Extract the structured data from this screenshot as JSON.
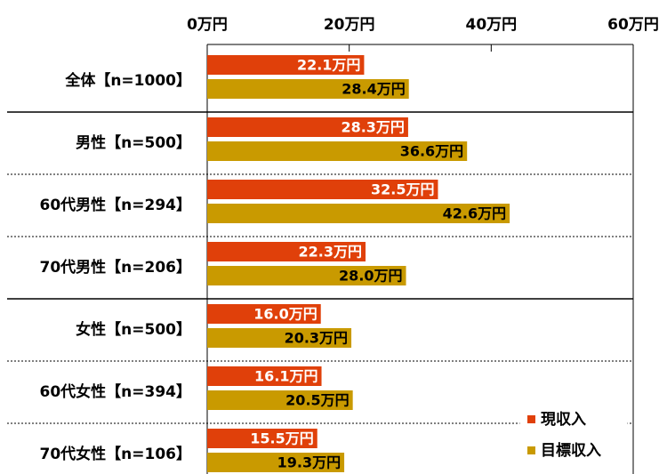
{
  "chart_data": {
    "type": "bar",
    "orientation": "horizontal",
    "categories": [
      "全体【n=1000】",
      "男性【n=500】",
      "60代男性【n=294】",
      "70代男性【n=206】",
      "女性【n=500】",
      "60代女性【n=394】",
      "70代女性【n=106】"
    ],
    "series": [
      {
        "name": "現収入",
        "color": "#e0400a",
        "values": [
          22.1,
          28.3,
          32.5,
          22.3,
          16.0,
          16.1,
          15.5
        ],
        "value_labels": [
          "22.1万円",
          "28.3万円",
          "32.5万円",
          "22.3万円",
          "16.0万円",
          "16.1万円",
          "15.5万円"
        ]
      },
      {
        "name": "目標収入",
        "color": "#c99a00",
        "values": [
          28.4,
          36.6,
          42.6,
          28.0,
          20.3,
          20.5,
          19.3
        ],
        "value_labels": [
          "28.4万円",
          "36.6万円",
          "42.6万円",
          "28.0万円",
          "20.3万円",
          "20.5万円",
          "19.3万円"
        ]
      }
    ],
    "xlim": [
      0,
      60
    ],
    "xticks": [
      {
        "value": 0,
        "label": "0万円"
      },
      {
        "value": 20,
        "label": "20万円"
      },
      {
        "value": 40,
        "label": "40万円"
      },
      {
        "value": 60,
        "label": "60万円"
      }
    ],
    "legend": "lower right"
  }
}
